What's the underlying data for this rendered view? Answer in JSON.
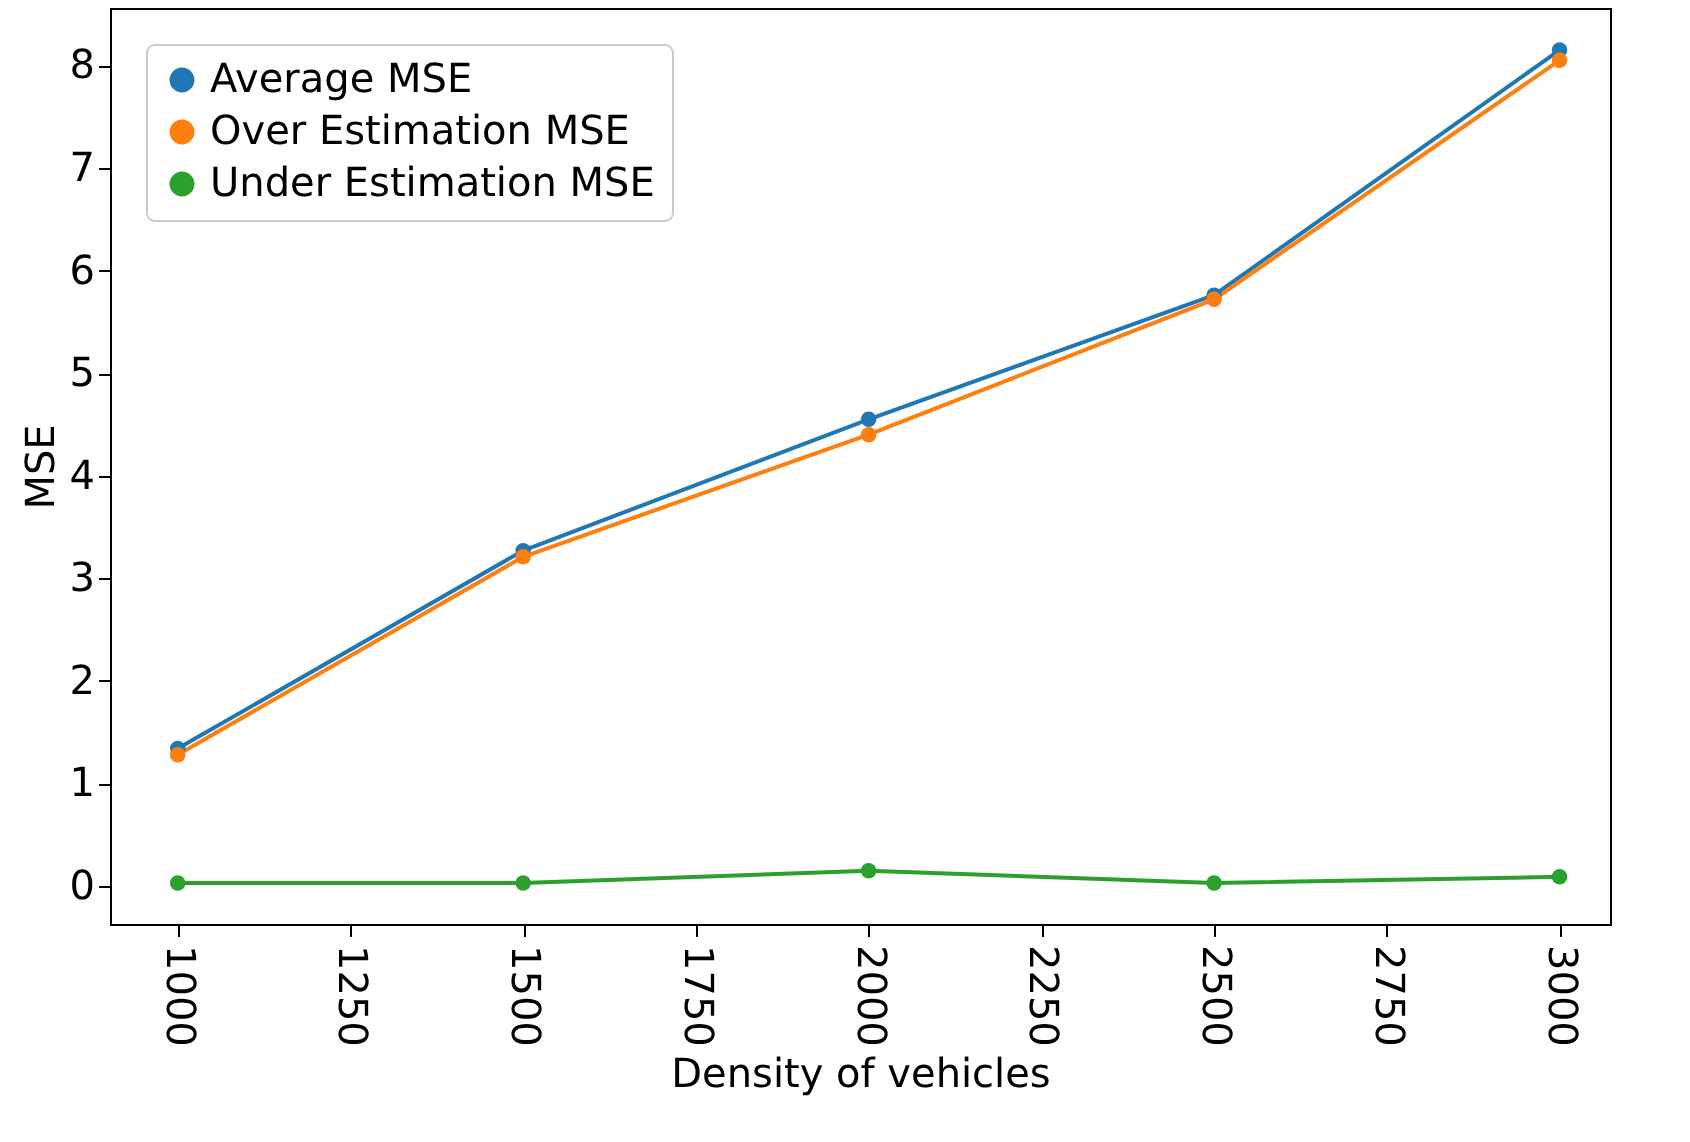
{
  "chart_data": {
    "type": "line",
    "xlabel": "Density of vehicles",
    "ylabel": "MSE",
    "x": [
      1000,
      1500,
      2000,
      2500,
      3000
    ],
    "series": [
      {
        "name": "Average MSE",
        "color": "#1f77b4",
        "values": [
          1.34,
          3.27,
          4.55,
          5.76,
          8.15
        ]
      },
      {
        "name": "Over Estimation MSE",
        "color": "#ff7f0e",
        "values": [
          1.28,
          3.21,
          4.4,
          5.72,
          8.05
        ]
      },
      {
        "name": "Under Estimation MSE",
        "color": "#2ca02c",
        "values": [
          0.03,
          0.03,
          0.15,
          0.03,
          0.09
        ]
      }
    ],
    "xlim": [
      902,
      3073
    ],
    "xticks": [
      1000,
      1250,
      1500,
      1750,
      2000,
      2250,
      2500,
      2750,
      3000
    ],
    "ylim": [
      -0.37,
      8.56
    ],
    "yticks": [
      0,
      1,
      2,
      3,
      4,
      5,
      6,
      7,
      8
    ],
    "legend": "top left",
    "marker": "circle",
    "line_style": "solid",
    "grid": false
  }
}
